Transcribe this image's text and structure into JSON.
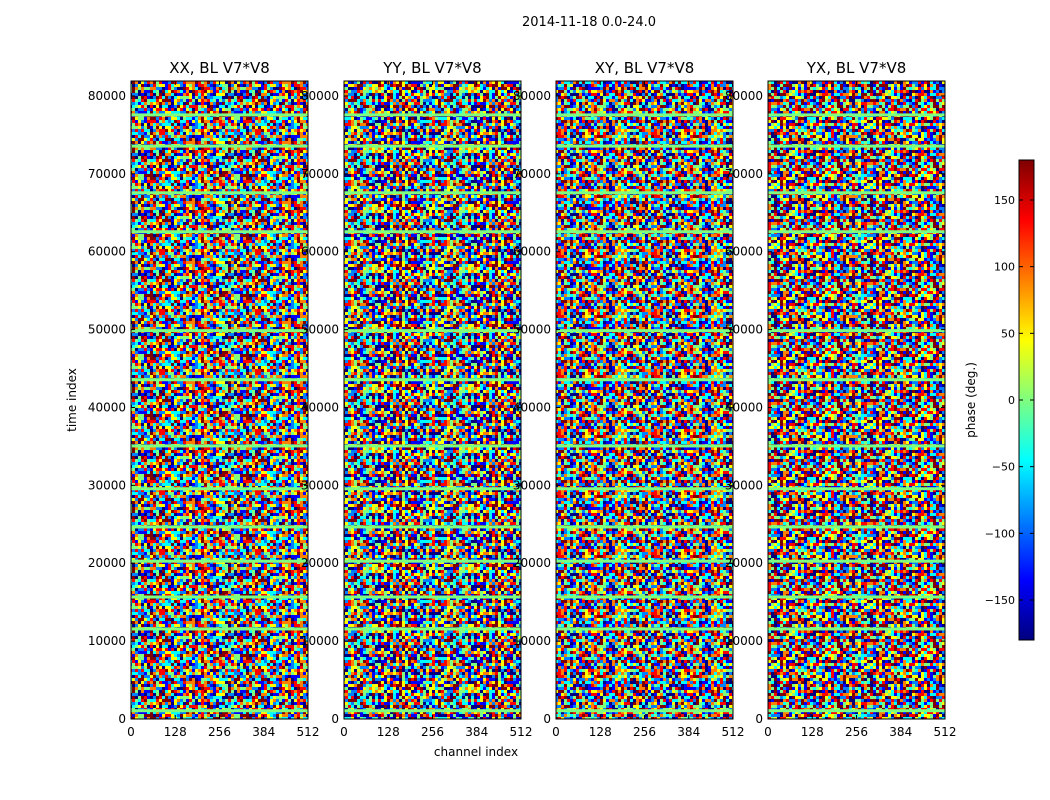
{
  "figure": {
    "suptitle": "2014-11-18 0.0-24.0",
    "xlabel": "channel index",
    "ylabel": "time index"
  },
  "chart_data": {
    "type": "heatmap",
    "xlim": [
      0,
      512
    ],
    "ylim": [
      0,
      81920
    ],
    "x_ticks": [
      0,
      128,
      256,
      384,
      512
    ],
    "y_ticks": [
      0,
      10000,
      20000,
      30000,
      40000,
      50000,
      60000,
      70000,
      80000
    ],
    "colormap": "jet",
    "colorbar": {
      "label": "phase (deg.)",
      "range": [
        -180,
        180
      ],
      "ticks": [
        -150,
        -100,
        -50,
        0,
        50,
        100,
        150
      ],
      "tick_labels": [
        "−150",
        "−100",
        "−50",
        "0",
        "50",
        "100",
        "150"
      ],
      "colors": [
        "#00007f",
        "#0000ff",
        "#007fff",
        "#00ffff",
        "#7fff7f",
        "#ffff00",
        "#ff7f00",
        "#ff0000",
        "#7f0000"
      ]
    },
    "panels": [
      {
        "title": "XX, BL V7*V8"
      },
      {
        "title": "YY, BL V7*V8"
      },
      {
        "title": "XY, BL V7*V8"
      },
      {
        "title": "YX, BL V7*V8"
      }
    ],
    "flagged_rows_time": [
      1000,
      11500,
      15600,
      20200,
      24600,
      29500,
      35000,
      43500,
      49800,
      62500,
      67500,
      73500,
      77500
    ],
    "notes": "Phase of complex visibilities per time/channel; data shown as noisy jet-colormap heatmap with horizontal flagged (constant-phase) bands."
  }
}
